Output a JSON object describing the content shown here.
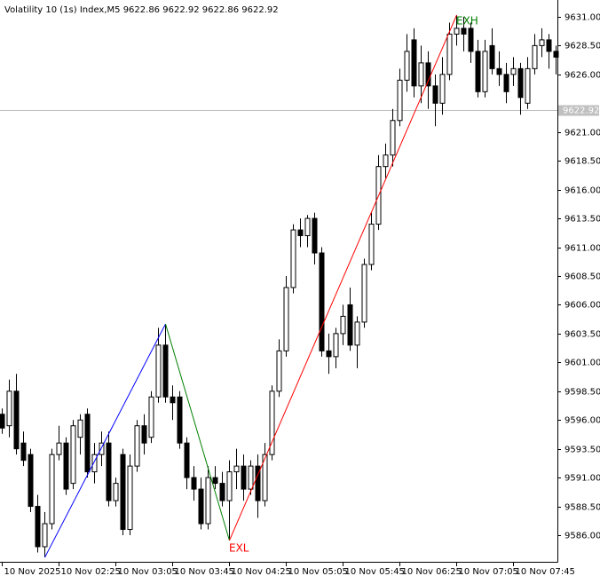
{
  "chart_data": {
    "type": "candlestick",
    "title": "Volatility 10 (1s) Index,M5  9622.86 9622.92 9622.86 9622.92",
    "categories": [
      "10 Nov 2025",
      null,
      null,
      null,
      null,
      null,
      null,
      null,
      "10 Nov 02:25",
      null,
      null,
      null,
      null,
      null,
      null,
      null,
      "10 Nov 03:05",
      null,
      null,
      null,
      null,
      null,
      null,
      null,
      "10 Nov 03:45",
      null,
      null,
      null,
      null,
      null,
      null,
      null,
      "10 Nov 04:25",
      null,
      null,
      null,
      null,
      null,
      null,
      null,
      "10 Nov 05:05",
      null,
      null,
      null,
      null,
      null,
      null,
      null,
      "10 Nov 05:45",
      null,
      null,
      null,
      null,
      null,
      null,
      null,
      "10 Nov 06:25",
      null,
      null,
      null,
      null,
      null,
      null,
      null,
      "10 Nov 07:05",
      null,
      null,
      null,
      null,
      null,
      null,
      null,
      "10 Nov 07:45",
      null,
      null,
      null,
      null,
      null,
      null
    ],
    "open": [
      9596.5,
      9595.5,
      9598.5,
      9594,
      9593,
      9588.5,
      9585,
      9587,
      9593,
      9594,
      9590.5,
      9594.5,
      9596.5,
      9591.5,
      9593,
      9594,
      9589,
      9593,
      9586.5,
      9592,
      9595.5,
      9594.5,
      9598,
      9602.5,
      9598,
      9598,
      9594,
      9591,
      9590,
      9587,
      9591,
      9590.5,
      9589,
      9591.5,
      9592,
      9590,
      9592,
      9589,
      9593,
      9598.5,
      9602,
      9607.5,
      9612.5,
      9612,
      9613.5,
      9610.5,
      9602,
      9601.5,
      9603.5,
      9606,
      9602.5,
      9604.5,
      9609.5,
      9613,
      9618,
      9619,
      9622,
      9625.5,
      9629,
      9625,
      9627,
      9625,
      9623.5,
      9626,
      9629.5,
      9630,
      9630,
      9628,
      9624.5,
      9628.5,
      9626.5,
      9626,
      9626,
      9626.5,
      9623.5,
      9626.5,
      9628.5,
      9629,
      9628
    ],
    "high": [
      9597,
      9599.5,
      9600,
      9595,
      9593.5,
      9589.5,
      9588,
      9593.5,
      9595.5,
      9594.5,
      9596,
      9596.5,
      9597,
      9594,
      9595,
      9595,
      9591,
      9593.5,
      9593,
      9596,
      9596.5,
      9598.5,
      9604,
      9604.3,
      9599,
      9598.5,
      9594.5,
      9592,
      9591,
      9592,
      9592,
      9591.5,
      9592.5,
      9593.5,
      9593,
      9592.5,
      9593,
      9594,
      9599,
      9603,
      9608.5,
      9613,
      9613.5,
      9613.8,
      9614,
      9611,
      9603.5,
      9604,
      9606,
      9607.5,
      9605,
      9610,
      9614,
      9619,
      9620,
      9623,
      9626.5,
      9629.5,
      9630,
      9628.5,
      9628,
      9626,
      9627.5,
      9630.5,
      9631.15,
      9631,
      9630.5,
      9629,
      9629,
      9630,
      9628,
      9627,
      9627.5,
      9627,
      9627.5,
      9629.5,
      9630,
      9629.5,
      9628.5
    ],
    "low": [
      9594.8,
      9594.5,
      9593,
      9592,
      9588,
      9584.5,
      9584.1,
      9586.5,
      9592.5,
      9589.5,
      9590,
      9593,
      9591,
      9590.5,
      9592,
      9588.5,
      9588.5,
      9586,
      9586,
      9591.5,
      9593,
      9594,
      9597.5,
      9597.5,
      9596,
      9593.5,
      9590,
      9589,
      9586.5,
      9586.5,
      9590,
      9588.5,
      9585.54,
      9590,
      9589,
      9589.5,
      9587.5,
      9588.5,
      9592.5,
      9598,
      9601.5,
      9607,
      9611,
      9611,
      9609.5,
      9601.5,
      9600,
      9600.5,
      9602.5,
      9602,
      9600.5,
      9604,
      9609,
      9612.5,
      9617,
      9618,
      9621.5,
      9624.5,
      9624,
      9623.5,
      9623,
      9621.5,
      9622.5,
      9625.5,
      9628.5,
      9628,
      9627,
      9624,
      9624,
      9626,
      9625,
      9623.5,
      9625,
      9622.5,
      9623,
      9626,
      9627.5,
      9626.5,
      9626
    ],
    "close": [
      9595.3,
      9598.5,
      9593.5,
      9592.5,
      9588.5,
      9585,
      9587,
      9593,
      9594,
      9590,
      9595.5,
      9596,
      9591.5,
      9593,
      9594,
      9589,
      9590.5,
      9586.5,
      9592,
      9595.5,
      9594,
      9598,
      9602.5,
      9598,
      9597.5,
      9594,
      9591,
      9590,
      9587,
      9591,
      9590.5,
      9589,
      9591.5,
      9592,
      9590,
      9592,
      9589,
      9593,
      9598.5,
      9602,
      9607.5,
      9612.5,
      9612,
      9613.5,
      9610.5,
      9602,
      9601.5,
      9603.5,
      9605,
      9602.5,
      9604.5,
      9609.5,
      9613,
      9618,
      9619,
      9622,
      9625.5,
      9628,
      9625,
      9627,
      9625,
      9623.5,
      9626,
      9629.5,
      9630,
      9629.5,
      9628,
      9624.5,
      9628,
      9626.5,
      9626,
      9624.5,
      9626.5,
      9624,
      9626.5,
      9628.5,
      9629,
      9628,
      9627.5
    ],
    "up_color": "#ffffff",
    "down_color": "#000000",
    "wick_color": "#000000",
    "zigzag": {
      "x": [
        6,
        23,
        32,
        64
      ],
      "values": [
        9584.07,
        9604.34,
        9585.54,
        9631.15
      ],
      "colors": [
        "#0000ff",
        "#008000",
        "#ff0000"
      ],
      "labels": [
        null,
        null,
        "EXL",
        "EXH"
      ],
      "label_colors": [
        null,
        null,
        "#ff0000",
        "#008000"
      ]
    },
    "current_price": {
      "value": 9622.92,
      "label": "9622.92"
    },
    "ylim": [
      9583.69,
      9632.46
    ],
    "yticks": [
      {
        "value": 9586,
        "label": "9586.00"
      },
      {
        "value": 9588.5,
        "label": "9588.50"
      },
      {
        "value": 9591,
        "label": "9591.00"
      },
      {
        "value": 9593.5,
        "label": "9593.50"
      },
      {
        "value": 9596,
        "label": "9596.00"
      },
      {
        "value": 9598.5,
        "label": "9598.50"
      },
      {
        "value": 9601,
        "label": "9601.00"
      },
      {
        "value": 9603.5,
        "label": "9603.50"
      },
      {
        "value": 9606,
        "label": "9606.00"
      },
      {
        "value": 9608.5,
        "label": "9608.50"
      },
      {
        "value": 9611,
        "label": "9611.00"
      },
      {
        "value": 9613.5,
        "label": "9613.50"
      },
      {
        "value": 9616,
        "label": "9616.00"
      },
      {
        "value": 9618.5,
        "label": "9618.50"
      },
      {
        "value": 9621,
        "label": "9621.00"
      },
      {
        "value": 9626,
        "label": "9626.00"
      },
      {
        "value": 9628.5,
        "label": "9628.50"
      },
      {
        "value": 9631,
        "label": "9631.00"
      }
    ]
  }
}
